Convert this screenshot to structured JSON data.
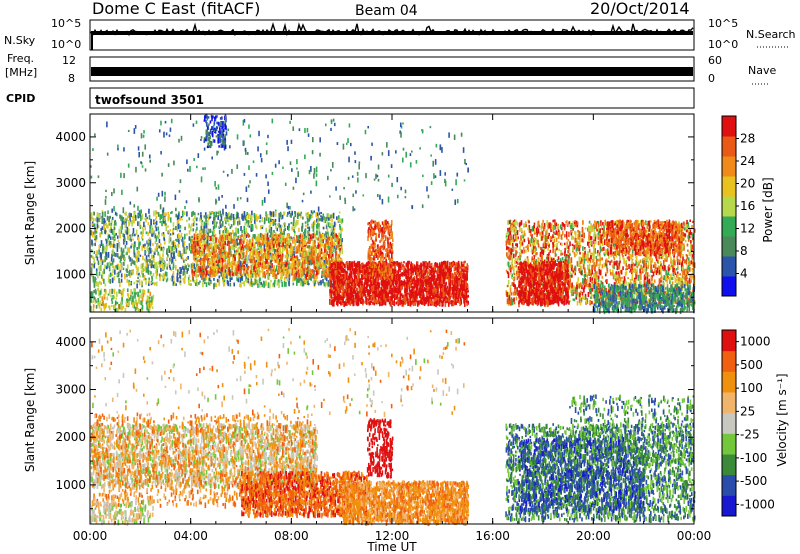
{
  "header": {
    "station": "Dome C East (fitACF)",
    "beam": "Beam 04",
    "date": "20/Oct/2014"
  },
  "noise_panel": {
    "left_label": "N.Sky",
    "right_label": "N.Search",
    "left_ticks": [
      "10^5",
      "10^0"
    ],
    "right_ticks": [
      "10^5",
      "10^0"
    ]
  },
  "freq_panel": {
    "left_label_line1": "Freq.",
    "left_label_line2": "[MHz]",
    "left_ticks": [
      "12",
      "8"
    ],
    "right_label": "Nave",
    "right_ticks": [
      "60",
      "0"
    ]
  },
  "cpid": {
    "label": "CPID",
    "value": "twofsound 3501"
  },
  "colors": {
    "power": [
      "#1010ee",
      "#2a55aa",
      "#4a8a5a",
      "#33aa55",
      "#b7d84a",
      "#e8c21e",
      "#f08a1a",
      "#e85a15",
      "#e01010"
    ],
    "velocity": [
      "#e01010",
      "#f06010",
      "#f0900f",
      "#f0b46a",
      "#c8c8c0",
      "#72c83a",
      "#3a8a3a",
      "#2a4caa",
      "#1818d0"
    ]
  },
  "chart_data": [
    {
      "type": "heatmap",
      "title": "",
      "ylabel": "Slant Range [km]",
      "xlabel": "",
      "ylim": [
        180,
        4500
      ],
      "xlim": [
        0,
        24
      ],
      "y_ticks": [
        "1000",
        "2000",
        "3000",
        "4000"
      ],
      "x_ticks": [
        "00:00",
        "04:00",
        "08:00",
        "12:00",
        "16:00",
        "20:00",
        "00:00"
      ],
      "colorbar": {
        "label": "Power [dB]",
        "ticks": [
          "4",
          "8",
          "12",
          "16",
          "20",
          "24",
          "28"
        ],
        "range": [
          0,
          30
        ]
      },
      "variable": "power"
    },
    {
      "type": "heatmap",
      "title": "",
      "ylabel": "Slant Range [km]",
      "xlabel": "Time UT",
      "ylim": [
        180,
        4500
      ],
      "xlim": [
        0,
        24
      ],
      "y_ticks": [
        "1000",
        "2000",
        "3000",
        "4000"
      ],
      "x_ticks": [
        "00:00",
        "04:00",
        "08:00",
        "12:00",
        "16:00",
        "20:00",
        "00:00"
      ],
      "colorbar": {
        "label": "Velocity [m s⁻¹]",
        "ticks": [
          "1000",
          "500",
          "100",
          "25",
          "-25",
          "-100",
          "-500",
          "-1000"
        ]
      },
      "variable": "velocity"
    }
  ]
}
